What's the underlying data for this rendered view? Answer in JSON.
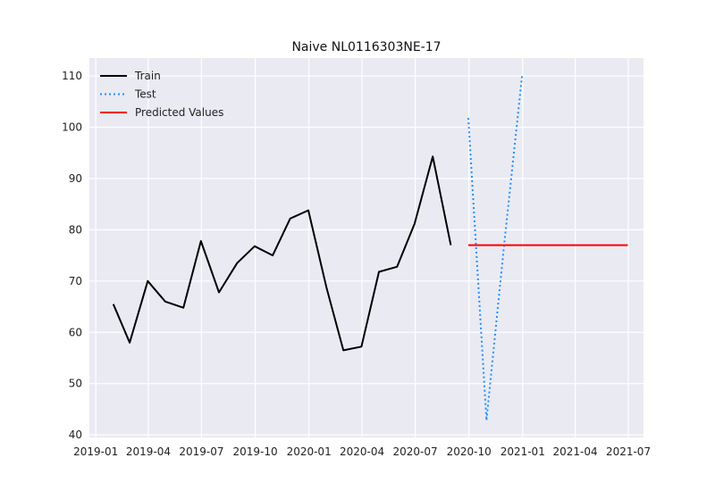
{
  "chart_data": {
    "type": "line",
    "title": "Naive NL0116303NE-17",
    "xlabel": "",
    "ylabel": "",
    "xlim": [
      "2018-12-21",
      "2021-07-27"
    ],
    "ylim": [
      39.5,
      113.5
    ],
    "xticks": [
      "2019-01",
      "2019-04",
      "2019-07",
      "2019-10",
      "2020-01",
      "2020-04",
      "2020-07",
      "2020-10",
      "2021-01",
      "2021-04",
      "2021-07"
    ],
    "yticks": [
      40,
      50,
      60,
      70,
      80,
      90,
      100,
      110
    ],
    "grid": true,
    "legend_position": "top-left",
    "colors": {
      "background": "#eaeaf2",
      "grid": "#ffffff",
      "train": "#000000",
      "test": "#1e90ff",
      "predicted": "#ff0000"
    },
    "series": [
      {
        "name": "Train",
        "style": "solid",
        "color": "#000000",
        "points": [
          {
            "x": "2019-01-31",
            "y": 65.5
          },
          {
            "x": "2019-02-28",
            "y": 58.0
          },
          {
            "x": "2019-03-31",
            "y": 70.0
          },
          {
            "x": "2019-04-30",
            "y": 66.0
          },
          {
            "x": "2019-05-31",
            "y": 64.8
          },
          {
            "x": "2019-06-30",
            "y": 77.8
          },
          {
            "x": "2019-07-31",
            "y": 67.8
          },
          {
            "x": "2019-08-31",
            "y": 73.5
          },
          {
            "x": "2019-09-30",
            "y": 76.8
          },
          {
            "x": "2019-10-31",
            "y": 75.0
          },
          {
            "x": "2019-11-30",
            "y": 82.2
          },
          {
            "x": "2019-12-31",
            "y": 83.8
          },
          {
            "x": "2020-01-31",
            "y": 68.8
          },
          {
            "x": "2020-02-29",
            "y": 56.5
          },
          {
            "x": "2020-03-31",
            "y": 57.2
          },
          {
            "x": "2020-04-30",
            "y": 71.8
          },
          {
            "x": "2020-05-31",
            "y": 72.8
          },
          {
            "x": "2020-06-30",
            "y": 81.2
          },
          {
            "x": "2020-07-31",
            "y": 94.3
          },
          {
            "x": "2020-08-31",
            "y": 77.0
          }
        ]
      },
      {
        "name": "Test",
        "style": "dotted",
        "color": "#1e90ff",
        "points": [
          {
            "x": "2020-09-30",
            "y": 101.8
          },
          {
            "x": "2020-10-31",
            "y": 42.8
          },
          {
            "x": "2020-11-30",
            "y": 76.8
          },
          {
            "x": "2020-12-31",
            "y": 110.0
          }
        ]
      },
      {
        "name": "Predicted Values",
        "style": "solid",
        "color": "#ff0000",
        "points": [
          {
            "x": "2020-09-30",
            "y": 77.0
          },
          {
            "x": "2021-06-30",
            "y": 77.0
          }
        ]
      }
    ]
  }
}
